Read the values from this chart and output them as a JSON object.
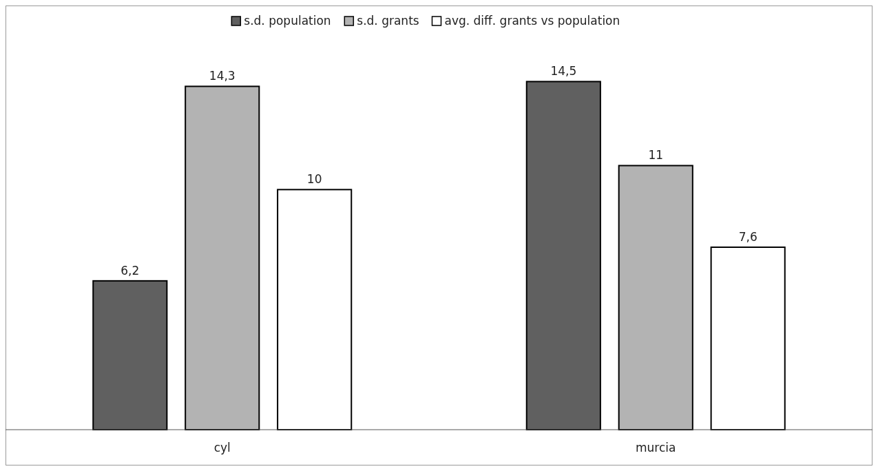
{
  "chart_data": {
    "type": "bar",
    "categories": [
      "cyl",
      "murcia"
    ],
    "series": [
      {
        "name": "s.d. population",
        "color": "#606060",
        "values": [
          6.2,
          14.5
        ],
        "value_labels": [
          "6,2",
          "14,5"
        ]
      },
      {
        "name": "s.d. grants",
        "color": "#b3b3b3",
        "values": [
          14.3,
          11
        ],
        "value_labels": [
          "14,3",
          "11"
        ]
      },
      {
        "name": "avg. diff. grants vs population",
        "color": "#ffffff",
        "values": [
          10,
          7.6
        ],
        "value_labels": [
          "10",
          "7,6"
        ]
      }
    ],
    "legend": "top",
    "grid": false
  }
}
